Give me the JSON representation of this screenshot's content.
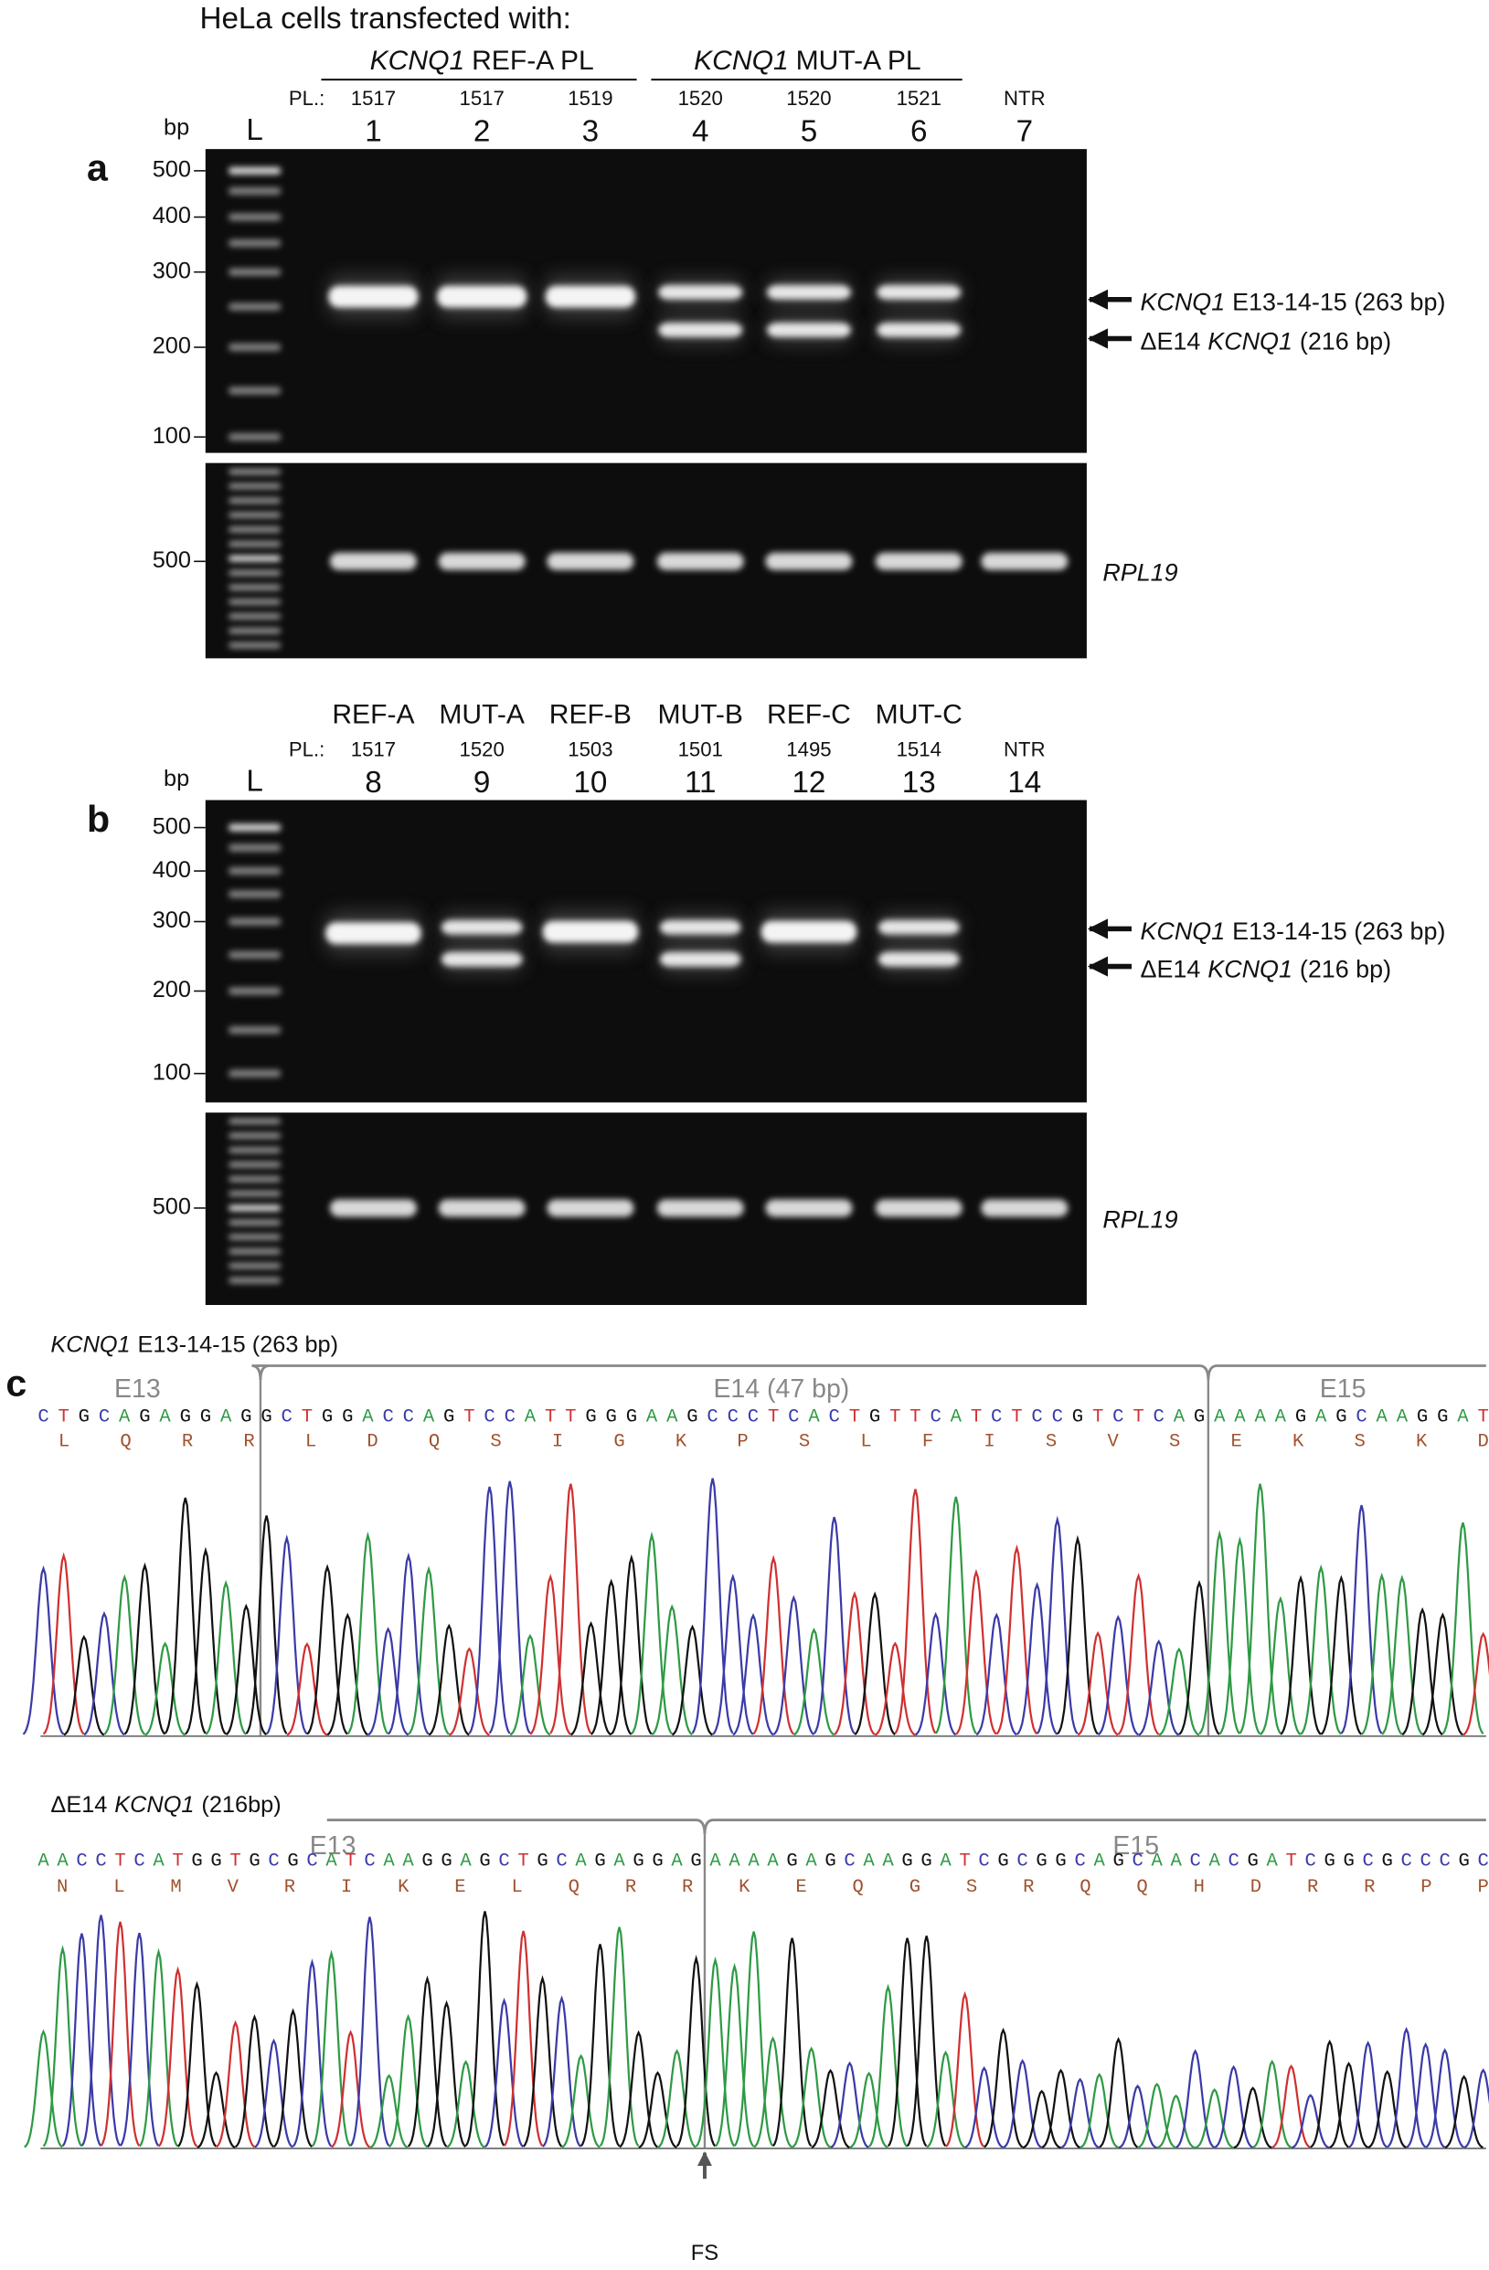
{
  "header": "HeLa cells transfected with:",
  "panel_a": {
    "label": "a",
    "groups": [
      {
        "gene": "KCNQ1",
        "label": "REF-A PL"
      },
      {
        "gene": "KCNQ1",
        "label": "MUT-A PL"
      }
    ],
    "pl_label": "PL.:",
    "plasmids": [
      "1517",
      "1517",
      "1519",
      "1520",
      "1520",
      "1521",
      "NTR"
    ],
    "lanes": [
      "1",
      "2",
      "3",
      "4",
      "5",
      "6",
      "7"
    ],
    "bp_label": "bp",
    "ladder_label": "L",
    "ladder_ticks": [
      500,
      400,
      300,
      200,
      100
    ],
    "bands": [
      {
        "gene": "KCNQ1",
        "suffix": "E13-14-15 (263 bp)"
      },
      {
        "prefix": "ΔE14",
        "gene": "KCNQ1",
        "suffix": "(216 bp)"
      }
    ],
    "lower_ticks": [
      500
    ],
    "lower_gene": "RPL19"
  },
  "panel_b": {
    "label": "b",
    "names": [
      "REF-A",
      "MUT-A",
      "REF-B",
      "MUT-B",
      "REF-C",
      "MUT-C"
    ],
    "pl_label": "PL.:",
    "plasmids": [
      "1517",
      "1520",
      "1503",
      "1501",
      "1495",
      "1514",
      "NTR"
    ],
    "lanes": [
      "8",
      "9",
      "10",
      "11",
      "12",
      "13",
      "14"
    ],
    "bp_label": "bp",
    "ladder_label": "L",
    "ladder_ticks": [
      500,
      400,
      300,
      200,
      100
    ],
    "bands": [
      {
        "gene": "KCNQ1",
        "suffix": "E13-14-15 (263 bp)"
      },
      {
        "prefix": "ΔE14",
        "gene": "KCNQ1",
        "suffix": "(216 bp)"
      }
    ],
    "lower_ticks": [
      500
    ],
    "lower_gene": "RPL19"
  },
  "panel_c": {
    "label": "c",
    "traces": [
      {
        "gene": "KCNQ1",
        "suffix": "E13-14-15  (263 bp)",
        "exons": [
          "E13",
          "E14 (47 bp)",
          "E15"
        ],
        "sequence": "CTGCAGAGGAGGCTGGACCAGTCCATTGGGAAGCCCTCACTGTTCATCTCCGTCTCAGAAAAGAGCAAGGAT",
        "protein": [
          "L",
          "Q",
          "R",
          "R",
          "L",
          "D",
          "Q",
          "S",
          "I",
          "G",
          "K",
          "P",
          "S",
          "L",
          "F",
          "I",
          "S",
          "V",
          "S",
          "E",
          "K",
          "S",
          "K",
          "D"
        ]
      },
      {
        "prefix": "ΔE14",
        "gene": "KCNQ1",
        "suffix": "(216bp)",
        "exons": [
          "E13",
          "E15"
        ],
        "sequence": "AACCTCATGGTGCGCATCAAGGAGCTGCAGAGGAGAAAAGAGCAAGGATCGCGGCAGCAACACGATCGGCGCCCGC",
        "protein": [
          "N",
          "L",
          "M",
          "V",
          "R",
          "I",
          "K",
          "E",
          "L",
          "Q",
          "R",
          "R",
          "K",
          "E",
          "Q",
          "G",
          "S",
          "R",
          "Q",
          "Q",
          "H",
          "D",
          "R",
          "R",
          "P",
          "P"
        ]
      }
    ],
    "marker": "FS"
  }
}
